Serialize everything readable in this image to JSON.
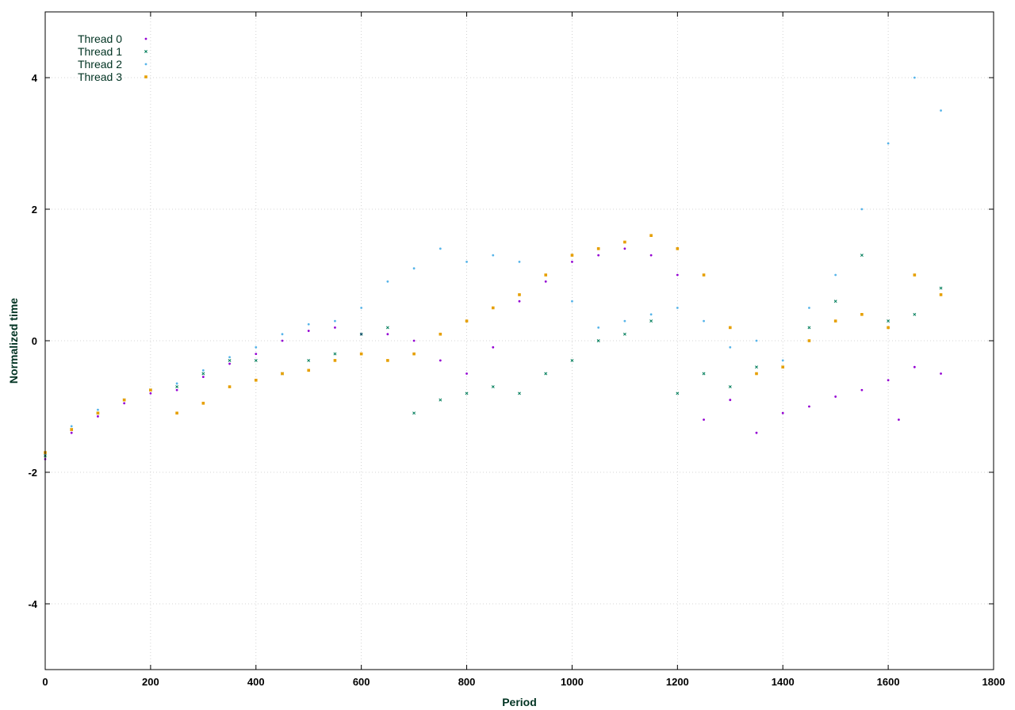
{
  "chart_data": {
    "type": "scatter",
    "title": "",
    "xlabel": "Period",
    "ylabel": "Normalized time",
    "xlim": [
      0,
      1800
    ],
    "ylim": [
      -5,
      5
    ],
    "x_ticks": [
      0,
      200,
      400,
      600,
      800,
      1000,
      1200,
      1400,
      1600,
      1800
    ],
    "y_ticks": [
      -4,
      -2,
      0,
      2,
      4
    ],
    "grid": true,
    "legend_position": "top-left",
    "series": [
      {
        "name": "Thread 0",
        "color": "#9400d3",
        "marker": "dot",
        "points": [
          [
            0,
            -1.8
          ],
          [
            50,
            -1.4
          ],
          [
            100,
            -1.15
          ],
          [
            150,
            -0.95
          ],
          [
            200,
            -0.8
          ],
          [
            250,
            -0.75
          ],
          [
            300,
            -0.55
          ],
          [
            350,
            -0.35
          ],
          [
            400,
            -0.2
          ],
          [
            450,
            0.0
          ],
          [
            500,
            0.15
          ],
          [
            550,
            0.2
          ],
          [
            600,
            0.1
          ],
          [
            650,
            0.1
          ],
          [
            700,
            0.0
          ],
          [
            750,
            -0.3
          ],
          [
            800,
            -0.5
          ],
          [
            850,
            -0.1
          ],
          [
            900,
            0.6
          ],
          [
            950,
            0.9
          ],
          [
            1000,
            1.2
          ],
          [
            1050,
            1.3
          ],
          [
            1100,
            1.4
          ],
          [
            1150,
            1.3
          ],
          [
            1200,
            1.0
          ],
          [
            1250,
            -1.2
          ],
          [
            1300,
            -0.9
          ],
          [
            1350,
            -1.4
          ],
          [
            1400,
            -1.1
          ],
          [
            1450,
            -1.0
          ],
          [
            1500,
            -0.85
          ],
          [
            1550,
            -0.75
          ],
          [
            1600,
            -0.6
          ],
          [
            1620,
            -1.2
          ],
          [
            1650,
            -0.4
          ],
          [
            1700,
            -0.5
          ]
        ]
      },
      {
        "name": "Thread 1",
        "color": "#007d5a",
        "marker": "cross",
        "points": [
          [
            0,
            -1.75
          ],
          [
            50,
            -1.35
          ],
          [
            100,
            -1.1
          ],
          [
            150,
            -0.9
          ],
          [
            200,
            -0.75
          ],
          [
            250,
            -0.7
          ],
          [
            300,
            -0.5
          ],
          [
            350,
            -0.3
          ],
          [
            400,
            -0.3
          ],
          [
            450,
            -0.5
          ],
          [
            500,
            -0.3
          ],
          [
            550,
            -0.2
          ],
          [
            600,
            0.1
          ],
          [
            650,
            0.2
          ],
          [
            700,
            -1.1
          ],
          [
            750,
            -0.9
          ],
          [
            800,
            -0.8
          ],
          [
            850,
            -0.7
          ],
          [
            900,
            -0.8
          ],
          [
            950,
            -0.5
          ],
          [
            1000,
            -0.3
          ],
          [
            1050,
            0.0
          ],
          [
            1100,
            0.1
          ],
          [
            1150,
            0.3
          ],
          [
            1200,
            -0.8
          ],
          [
            1250,
            -0.5
          ],
          [
            1300,
            -0.7
          ],
          [
            1350,
            -0.4
          ],
          [
            1400,
            -0.4
          ],
          [
            1450,
            0.2
          ],
          [
            1500,
            0.6
          ],
          [
            1550,
            1.3
          ],
          [
            1600,
            0.3
          ],
          [
            1650,
            0.4
          ],
          [
            1700,
            0.8
          ]
        ]
      },
      {
        "name": "Thread 2",
        "color": "#56b4e9",
        "marker": "dot",
        "points": [
          [
            0,
            -1.7
          ],
          [
            50,
            -1.3
          ],
          [
            100,
            -1.05
          ],
          [
            150,
            -0.9
          ],
          [
            200,
            -0.75
          ],
          [
            250,
            -0.65
          ],
          [
            300,
            -0.45
          ],
          [
            350,
            -0.25
          ],
          [
            400,
            -0.1
          ],
          [
            450,
            0.1
          ],
          [
            500,
            0.25
          ],
          [
            550,
            0.3
          ],
          [
            600,
            0.5
          ],
          [
            650,
            0.9
          ],
          [
            700,
            1.1
          ],
          [
            750,
            1.4
          ],
          [
            800,
            1.2
          ],
          [
            850,
            1.3
          ],
          [
            900,
            1.2
          ],
          [
            950,
            1.0
          ],
          [
            1000,
            0.6
          ],
          [
            1050,
            0.2
          ],
          [
            1100,
            0.3
          ],
          [
            1150,
            0.4
          ],
          [
            1200,
            0.5
          ],
          [
            1250,
            0.3
          ],
          [
            1300,
            -0.1
          ],
          [
            1350,
            0.0
          ],
          [
            1400,
            -0.3
          ],
          [
            1450,
            0.5
          ],
          [
            1500,
            1.0
          ],
          [
            1550,
            2.0
          ],
          [
            1600,
            3.0
          ],
          [
            1650,
            4.0
          ],
          [
            1700,
            3.5
          ]
        ]
      },
      {
        "name": "Thread 3",
        "color": "#e69f00",
        "marker": "square",
        "points": [
          [
            0,
            -1.7
          ],
          [
            50,
            -1.35
          ],
          [
            100,
            -1.1
          ],
          [
            150,
            -0.9
          ],
          [
            200,
            -0.75
          ],
          [
            250,
            -1.1
          ],
          [
            300,
            -0.95
          ],
          [
            350,
            -0.7
          ],
          [
            400,
            -0.6
          ],
          [
            450,
            -0.5
          ],
          [
            500,
            -0.45
          ],
          [
            550,
            -0.3
          ],
          [
            600,
            -0.2
          ],
          [
            650,
            -0.3
          ],
          [
            700,
            -0.2
          ],
          [
            750,
            0.1
          ],
          [
            800,
            0.3
          ],
          [
            850,
            0.5
          ],
          [
            900,
            0.7
          ],
          [
            950,
            1.0
          ],
          [
            1000,
            1.3
          ],
          [
            1050,
            1.4
          ],
          [
            1100,
            1.5
          ],
          [
            1150,
            1.6
          ],
          [
            1200,
            1.4
          ],
          [
            1250,
            1.0
          ],
          [
            1300,
            0.2
          ],
          [
            1350,
            -0.5
          ],
          [
            1400,
            -0.4
          ],
          [
            1450,
            0.0
          ],
          [
            1500,
            0.3
          ],
          [
            1550,
            0.4
          ],
          [
            1600,
            0.2
          ],
          [
            1650,
            1.0
          ],
          [
            1700,
            0.7
          ]
        ]
      }
    ]
  }
}
